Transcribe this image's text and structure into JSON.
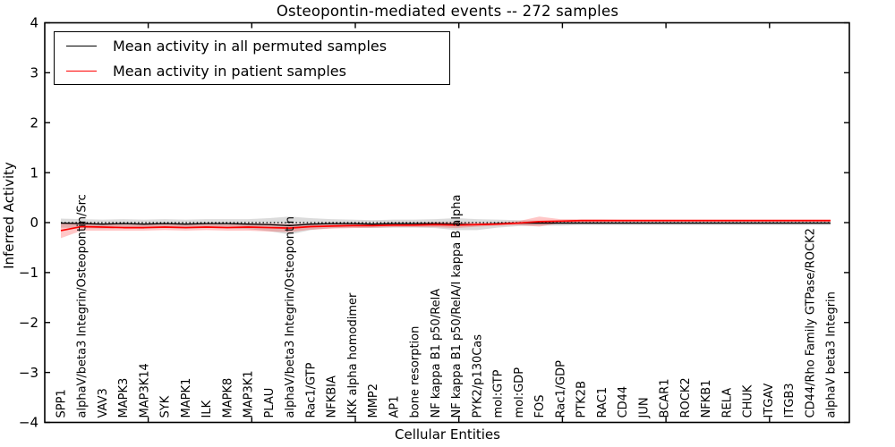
{
  "chart_data": {
    "type": "line",
    "title": "Osteopontin-mediated events -- 272 samples",
    "xlabel": "Cellular Entities",
    "ylabel": "Inferred Activity",
    "ylim": [
      -4,
      4
    ],
    "yticks": [
      -4,
      -3,
      -2,
      -1,
      0,
      1,
      2,
      3,
      4
    ],
    "ytick_labels": [
      "−4",
      "−3",
      "−2",
      "−1",
      "0",
      "1",
      "2",
      "3",
      "4"
    ],
    "grid": false,
    "legend_position": "upper left",
    "zero_line": {
      "y": 0,
      "style": "dotted",
      "color": "#000000"
    },
    "categories": [
      "SPP1",
      "alphaV/beta3 Integrin/Osteopontin/Src",
      "VAV3",
      "MAPK3",
      "MAP3K14",
      "SYK",
      "MAPK1",
      "ILK",
      "MAPK8",
      "MAP3K1",
      "PLAU",
      "alphaV/beta3 Integrin/Osteopontin",
      "Rac1/GTP",
      "NFKBIA",
      "IKK alpha homodimer",
      "MMP2",
      "AP1",
      "bone resorption",
      "NF kappa B1 p50/RelA",
      "NF kappa B1 p50/RelA/I kappa B alpha",
      "PYK2/p130Cas",
      "mol:GTP",
      "mol:GDP",
      "FOS",
      "Rac1/GDP",
      "PTK2B",
      "RAC1",
      "CD44",
      "JUN",
      "BCAR1",
      "ROCK2",
      "NFKB1",
      "RELA",
      "CHUK",
      "ITGAV",
      "ITGB3",
      "CD44/Rho Family GTPase/ROCK2",
      "alphaV beta3 Integrin"
    ],
    "series": [
      {
        "name": "Mean activity in all permuted samples",
        "color": "#000000",
        "band_color": "rgba(0,0,0,0.14)",
        "values": [
          -0.01,
          -0.02,
          -0.03,
          -0.02,
          -0.03,
          -0.02,
          -0.03,
          -0.02,
          -0.02,
          -0.03,
          -0.04,
          -0.06,
          -0.03,
          -0.02,
          -0.02,
          -0.03,
          -0.02,
          -0.02,
          -0.02,
          -0.03,
          -0.04,
          -0.02,
          -0.01,
          -0.01,
          -0.01,
          -0.01,
          -0.01,
          -0.01,
          -0.01,
          -0.01,
          -0.01,
          -0.01,
          -0.01,
          -0.01,
          -0.01,
          -0.01,
          -0.01,
          -0.01
        ],
        "band_halfwidth": [
          0.09,
          0.09,
          0.09,
          0.09,
          0.09,
          0.09,
          0.09,
          0.09,
          0.09,
          0.1,
          0.13,
          0.18,
          0.12,
          0.09,
          0.08,
          0.08,
          0.08,
          0.08,
          0.09,
          0.12,
          0.11,
          0.08,
          0.06,
          0.05,
          0.05,
          0.04,
          0.04,
          0.04,
          0.04,
          0.04,
          0.04,
          0.04,
          0.04,
          0.04,
          0.04,
          0.04,
          0.04,
          0.04
        ]
      },
      {
        "name": "Mean activity in patient samples",
        "color": "#ff0000",
        "band_color": "rgba(255,0,0,0.22)",
        "values": [
          -0.16,
          -0.08,
          -0.09,
          -0.1,
          -0.1,
          -0.09,
          -0.1,
          -0.09,
          -0.1,
          -0.09,
          -0.1,
          -0.11,
          -0.08,
          -0.07,
          -0.06,
          -0.06,
          -0.05,
          -0.05,
          -0.04,
          -0.05,
          -0.04,
          -0.03,
          -0.01,
          0.02,
          0.03,
          0.04,
          0.04,
          0.04,
          0.04,
          0.04,
          0.04,
          0.04,
          0.04,
          0.04,
          0.04,
          0.04,
          0.04,
          0.04
        ],
        "band_halfwidth": [
          0.15,
          0.08,
          0.07,
          0.06,
          0.06,
          0.06,
          0.06,
          0.06,
          0.06,
          0.07,
          0.08,
          0.08,
          0.06,
          0.05,
          0.05,
          0.04,
          0.04,
          0.04,
          0.05,
          0.06,
          0.04,
          0.03,
          0.04,
          0.1,
          0.04,
          0.03,
          0.03,
          0.025,
          0.025,
          0.025,
          0.025,
          0.025,
          0.025,
          0.025,
          0.025,
          0.025,
          0.025,
          0.025
        ]
      }
    ]
  }
}
